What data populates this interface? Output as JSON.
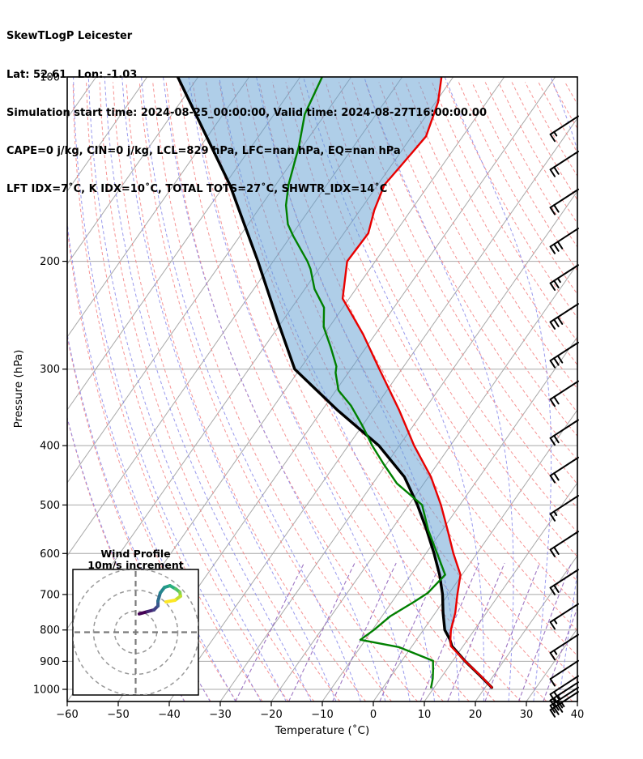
{
  "header": {
    "title": "SkewTLogP Leicester",
    "location": "Lat: 52.61   Lon: -1.03",
    "times": "Simulation start time: 2024-08-25_00:00:00, Valid time: 2024-08-27T16:00:00.00",
    "indices1": "CAPE=0 j/kg, CIN=0 j/kg, LCL=829 hPa, LFC=nan hPa, EQ=nan hPa",
    "indices2": "LFT IDX=7˚C, K IDX=10˚C, TOTAL TOTS=27˚C, SHWTR_IDX=14˚C"
  },
  "axes": {
    "x_label": "Temperature (˚C)",
    "y_label": "Pressure (hPa)",
    "x_ticks": [
      -60,
      -50,
      -40,
      -30,
      -20,
      -10,
      0,
      10,
      20,
      30,
      40
    ],
    "y_ticks": [
      100,
      200,
      300,
      400,
      500,
      600,
      700,
      800,
      900,
      1000
    ]
  },
  "inset": {
    "title": "Wind Profile",
    "subtitle": "10m/s increment",
    "rings_mps": [
      10,
      20,
      30
    ]
  },
  "chart_data": {
    "type": "skewt-logp",
    "x_range_C": [
      -60,
      40
    ],
    "p_range_hPa": [
      100,
      1047
    ],
    "lcl_hPa": 829,
    "temperature": {
      "pressure": [
        100,
        110,
        125,
        140,
        150,
        165,
        180,
        200,
        230,
        263,
        300,
        350,
        400,
        450,
        500,
        550,
        600,
        650,
        700,
        750,
        800,
        829,
        850,
        900,
        950,
        993
      ],
      "values": [
        -72.3,
        -69.5,
        -67.2,
        -68.1,
        -68.7,
        -67.2,
        -65.2,
        -65.5,
        -61.3,
        -52.4,
        -44.4,
        -34.9,
        -27.1,
        -19.5,
        -13.7,
        -8.9,
        -4.6,
        -0.3,
        1.8,
        3.9,
        5.4,
        6.6,
        7.6,
        12.5,
        17.5,
        21.3
      ]
    },
    "dewpoint": {
      "pressure": [
        100,
        115,
        130,
        150,
        162,
        174,
        182,
        200,
        206,
        222,
        238,
        256,
        276,
        297,
        304,
        325,
        344,
        371,
        400,
        429,
        461,
        500,
        550,
        600,
        650,
        696,
        720,
        760,
        800,
        830,
        853,
        898,
        930,
        960,
        993
      ],
      "values": [
        -95.7,
        -94,
        -90.7,
        -87.5,
        -85.2,
        -82.2,
        -79.5,
        -73.3,
        -71.6,
        -68.1,
        -63.7,
        -61.1,
        -57,
        -53.2,
        -52.5,
        -49.5,
        -45,
        -40,
        -35.3,
        -30.5,
        -25.3,
        -17.4,
        -12.7,
        -7.8,
        -3.3,
        -4.2,
        -5.7,
        -8.4,
        -9.7,
        -11,
        -2.5,
        6.1,
        7.4,
        8.5,
        9.4
      ]
    },
    "parcel": {
      "pressure": [
        100,
        150,
        200,
        250,
        300,
        350,
        400,
        450,
        500,
        550,
        600,
        650,
        700,
        750,
        800,
        829,
        850,
        900,
        950,
        993
      ],
      "values": [
        -124,
        -99,
        -83,
        -71,
        -61,
        -47,
        -34,
        -24.7,
        -18.3,
        -13,
        -8.4,
        -4.4,
        -1.1,
        1.5,
        4.2,
        6.5,
        7.8,
        12.5,
        17.4,
        21.3
      ]
    },
    "cin_shading": {
      "between": [
        "parcel",
        "temperature"
      ],
      "p_max": 829
    },
    "wind_barbs": [
      {
        "p": 120,
        "full": 1,
        "half": 1
      },
      {
        "p": 137,
        "full": 2,
        "half": 0
      },
      {
        "p": 158,
        "full": 2,
        "half": 0
      },
      {
        "p": 183,
        "full": 3,
        "half": 0
      },
      {
        "p": 210,
        "full": 2,
        "half": 1
      },
      {
        "p": 243,
        "full": 3,
        "half": 0
      },
      {
        "p": 281,
        "full": 3,
        "half": 0
      },
      {
        "p": 325,
        "full": 2,
        "half": 0
      },
      {
        "p": 376,
        "full": 2,
        "half": 0
      },
      {
        "p": 433,
        "full": 2,
        "half": 0
      },
      {
        "p": 500,
        "full": 1,
        "half": 1
      },
      {
        "p": 572,
        "full": 2,
        "half": 0
      },
      {
        "p": 660,
        "full": 2,
        "half": 0
      },
      {
        "p": 751,
        "full": 1,
        "half": 1
      },
      {
        "p": 843,
        "full": 1,
        "half": 1
      },
      {
        "p": 930,
        "full": 1,
        "half": 0
      },
      {
        "p": 985,
        "full": 2,
        "half": 0
      },
      {
        "p": 1008,
        "full": 2,
        "half": 1
      },
      {
        "p": 1028,
        "full": 3,
        "half": 0
      },
      {
        "p": 1045,
        "full": 3,
        "half": 1
      }
    ],
    "hodograph_trace_uv_mps": [
      [
        1.7,
        8.7
      ],
      [
        5.6,
        9.8
      ],
      [
        8.7,
        10.6
      ],
      [
        10.6,
        12.5
      ],
      [
        10.6,
        14.8
      ],
      [
        11.7,
        18.7
      ],
      [
        13.7,
        21.3
      ],
      [
        16.3,
        22.1
      ],
      [
        19.0,
        20.6
      ],
      [
        21.0,
        19.0
      ],
      [
        21.3,
        17.1
      ],
      [
        18.7,
        15.2
      ],
      [
        14.4,
        14.4
      ]
    ],
    "background": {
      "isotherm_step_C": 10,
      "isotherm_range_C": [
        -150,
        40
      ],
      "dry_adiabats_C": {
        "start": -40,
        "end": 170,
        "step": 5
      },
      "moist_adiabats_C": {
        "start": -40,
        "end": 45,
        "step": 5
      },
      "mixing_ratios_gkg": [
        0.4,
        1,
        2,
        4,
        7,
        10,
        16,
        24,
        32
      ]
    }
  },
  "style": {
    "temperature": "#e80000",
    "dewpoint": "#008000",
    "parcel": "#000000",
    "cin_fill": "#5f9ed1",
    "grid": "#a8a8a8",
    "dry_adiabat": "#f48080",
    "moist_adiabat": "#8080e8",
    "mixing_ratio": "#9467bd",
    "barb": "#000000",
    "ring": "#999999",
    "cross": "#7a7a7a",
    "viridis": [
      "#440154",
      "#46327e",
      "#3b518b",
      "#2c718e",
      "#21908d",
      "#27ad81",
      "#5cc863",
      "#aadc32",
      "#fde725"
    ]
  }
}
